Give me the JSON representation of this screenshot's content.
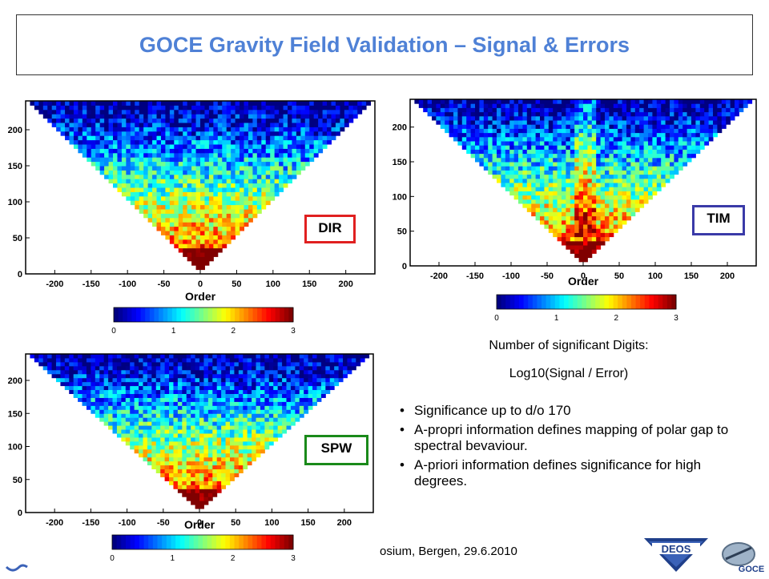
{
  "title": "GOCE Gravity Field Validation – Signal & Errors",
  "chart_data": [
    {
      "type": "heatmap",
      "tag": "DIR",
      "tag_color": "#e02020",
      "xlabel": "Order",
      "ylabel": "",
      "xlim": [
        -240,
        240
      ],
      "ylim": [
        0,
        240
      ],
      "x_ticks": [
        "-200",
        "-150",
        "-100",
        "-50",
        "0",
        "50",
        "100",
        "150",
        "200"
      ],
      "y_ticks": [
        "0",
        "50",
        "100",
        "150",
        "200"
      ],
      "colorbar": {
        "ticks": [
          "0",
          "1",
          "2",
          "3"
        ],
        "range": [
          0,
          3
        ]
      }
    },
    {
      "type": "heatmap",
      "tag": "TIM",
      "tag_color": "#3a3aa8",
      "xlabel": "Order",
      "ylabel": "",
      "xlim": [
        -240,
        240
      ],
      "ylim": [
        0,
        240
      ],
      "x_ticks": [
        "-200",
        "-150",
        "-100",
        "-50",
        "0",
        "50",
        "100",
        "150",
        "200"
      ],
      "y_ticks": [
        "0",
        "50",
        "100",
        "150",
        "200"
      ],
      "colorbar": {
        "ticks": [
          "0",
          "1",
          "2",
          "3"
        ],
        "range": [
          0,
          3
        ]
      }
    },
    {
      "type": "heatmap",
      "tag": "SPW",
      "tag_color": "#1a8a1a",
      "xlabel": "Order",
      "ylabel": "",
      "xlim": [
        -240,
        240
      ],
      "ylim": [
        0,
        240
      ],
      "x_ticks": [
        "-200",
        "-150",
        "-100",
        "-50",
        "0",
        "50",
        "100",
        "150",
        "200"
      ],
      "y_ticks": [
        "0",
        "50",
        "100",
        "150",
        "200"
      ],
      "colorbar": {
        "ticks": [
          "0",
          "1",
          "2",
          "3"
        ],
        "range": [
          0,
          3
        ]
      }
    }
  ],
  "side_text": {
    "line1": "Number of significant Digits:",
    "line2": "Log10(Signal / Error)"
  },
  "bullets": [
    "Significance up to d/o 170",
    "A-propri information defines mapping of polar gap to spectral bevaviour.",
    "A-priori information defines significance for high degrees."
  ],
  "footer": "osium, Bergen, 29.6.2010",
  "logos": {
    "deos": "DEOS",
    "goce": "GOCE"
  }
}
